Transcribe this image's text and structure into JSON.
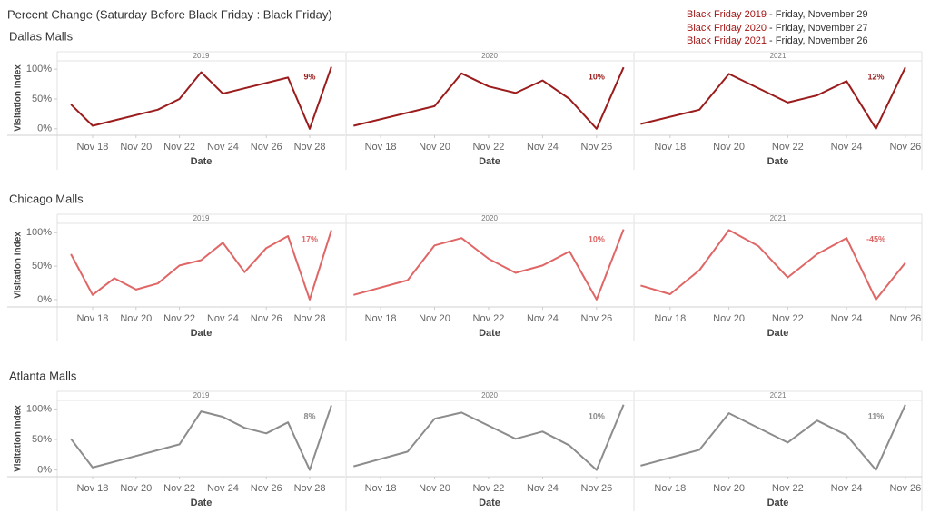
{
  "title": "Percent Change (Saturday Before Black Friday : Black Friday)",
  "notes": [
    {
      "label": "Black Friday 2019",
      "text": "- Friday, November 29"
    },
    {
      "label": "Black Friday 2020",
      "text": "- Friday, November 27"
    },
    {
      "label": "Black Friday 2021",
      "text": "- Friday, November 26"
    }
  ],
  "chart_data": [
    {
      "type": "line",
      "title": "Dallas Malls",
      "subtitle": "2019",
      "y_label": "Visitation Index",
      "x_label": "Date",
      "annotation": "9%",
      "color": "#9b1c1c",
      "x": [
        17,
        18,
        21,
        22,
        23,
        24,
        27,
        28,
        29
      ],
      "values": [
        41,
        5,
        32,
        50,
        95,
        59,
        86,
        0,
        104
      ],
      "xlim": [
        16.37,
        29.63
      ],
      "xticks": [
        {
          "value": 18,
          "label": "Nov 18"
        },
        {
          "value": 20,
          "label": "Nov 20"
        },
        {
          "value": 22,
          "label": "Nov 22"
        },
        {
          "value": 24,
          "label": "Nov 24"
        },
        {
          "value": 26,
          "label": "Nov 26"
        },
        {
          "value": 28,
          "label": "Nov 28"
        }
      ],
      "ylim": [
        -11,
        114
      ],
      "yticks": [
        {
          "value": 0,
          "label": "0%"
        },
        {
          "value": 50,
          "label": "50%"
        },
        {
          "value": 100,
          "label": "100%"
        }
      ]
    },
    {
      "type": "line",
      "subtitle": "2020",
      "x_label": "Date",
      "annotation": "10%",
      "color": "#9b1c1c",
      "x": [
        17,
        20,
        21,
        22,
        23,
        24,
        25,
        26,
        27
      ],
      "values": [
        5,
        38,
        93,
        71,
        60,
        81,
        50,
        0,
        103
      ],
      "xlim": [
        16.72,
        27.35
      ],
      "xticks": [
        {
          "value": 18,
          "label": "Nov 18"
        },
        {
          "value": 20,
          "label": "Nov 20"
        },
        {
          "value": 22,
          "label": "Nov 22"
        },
        {
          "value": 24,
          "label": "Nov 24"
        },
        {
          "value": 26,
          "label": "Nov 26"
        }
      ],
      "ylim": [
        -11,
        114
      ]
    },
    {
      "type": "line",
      "subtitle": "2021",
      "x_label": "Date",
      "annotation": "12%",
      "color": "#9b1c1c",
      "x": [
        17,
        19,
        20,
        22,
        23,
        24,
        25,
        26
      ],
      "values": [
        8,
        32,
        92,
        44,
        56,
        80,
        0,
        103
      ],
      "xlim": [
        16.77,
        26.56
      ],
      "xticks": [
        {
          "value": 18,
          "label": "Nov 18"
        },
        {
          "value": 20,
          "label": "Nov 20"
        },
        {
          "value": 22,
          "label": "Nov 22"
        },
        {
          "value": 24,
          "label": "Nov 24"
        },
        {
          "value": 26,
          "label": "Nov 26"
        }
      ],
      "ylim": [
        -11,
        114
      ]
    },
    {
      "type": "line",
      "title": "Chicago Malls",
      "subtitle": "2019",
      "y_label": "Visitation Index",
      "x_label": "Date",
      "annotation": "17%",
      "color": "#e06666",
      "x": [
        17,
        18,
        19,
        20,
        21,
        22,
        23,
        24,
        25,
        26,
        27,
        28,
        29
      ],
      "values": [
        68,
        7,
        32,
        15,
        24,
        51,
        59,
        85,
        41,
        77,
        95,
        0,
        104
      ],
      "xlim": [
        16.37,
        29.63
      ],
      "xticks": [
        {
          "value": 18,
          "label": "Nov 18"
        },
        {
          "value": 20,
          "label": "Nov 20"
        },
        {
          "value": 22,
          "label": "Nov 22"
        },
        {
          "value": 24,
          "label": "Nov 24"
        },
        {
          "value": 26,
          "label": "Nov 26"
        },
        {
          "value": 28,
          "label": "Nov 28"
        }
      ],
      "ylim": [
        -11,
        114
      ],
      "yticks": [
        {
          "value": 0,
          "label": "0%"
        },
        {
          "value": 50,
          "label": "50%"
        },
        {
          "value": 100,
          "label": "100%"
        }
      ]
    },
    {
      "type": "line",
      "subtitle": "2020",
      "x_label": "Date",
      "annotation": "10%",
      "color": "#e06666",
      "x": [
        17,
        19,
        20,
        21,
        22,
        23,
        24,
        25,
        26,
        27
      ],
      "values": [
        7,
        29,
        81,
        92,
        61,
        40,
        51,
        72,
        0,
        105
      ],
      "xlim": [
        16.72,
        27.35
      ],
      "xticks": [
        {
          "value": 18,
          "label": "Nov 18"
        },
        {
          "value": 20,
          "label": "Nov 20"
        },
        {
          "value": 22,
          "label": "Nov 22"
        },
        {
          "value": 24,
          "label": "Nov 24"
        },
        {
          "value": 26,
          "label": "Nov 26"
        }
      ],
      "ylim": [
        -11,
        114
      ]
    },
    {
      "type": "line",
      "subtitle": "2021",
      "x_label": "Date",
      "annotation": "-45%",
      "color": "#e06666",
      "x": [
        17,
        18,
        19,
        20,
        21,
        22,
        23,
        24,
        25,
        26
      ],
      "values": [
        21,
        8,
        44,
        104,
        80,
        33,
        68,
        92,
        0,
        55
      ],
      "xlim": [
        16.77,
        26.56
      ],
      "xticks": [
        {
          "value": 18,
          "label": "Nov 18"
        },
        {
          "value": 20,
          "label": "Nov 20"
        },
        {
          "value": 22,
          "label": "Nov 22"
        },
        {
          "value": 24,
          "label": "Nov 24"
        },
        {
          "value": 26,
          "label": "Nov 26"
        }
      ],
      "ylim": [
        -11,
        114
      ]
    },
    {
      "type": "line",
      "title": "Atlanta Malls",
      "subtitle": "2019",
      "y_label": "Visitation Index",
      "x_label": "Date",
      "annotation": "8%",
      "color": "#8c8c8c",
      "x": [
        17,
        18,
        22,
        23,
        24,
        25,
        26,
        27,
        28,
        29
      ],
      "values": [
        51,
        4,
        42,
        96,
        87,
        69,
        60,
        78,
        0,
        106
      ],
      "xlim": [
        16.37,
        29.63
      ],
      "xticks": [
        {
          "value": 18,
          "label": "Nov 18"
        },
        {
          "value": 20,
          "label": "Nov 20"
        },
        {
          "value": 22,
          "label": "Nov 22"
        },
        {
          "value": 24,
          "label": "Nov 24"
        },
        {
          "value": 26,
          "label": "Nov 26"
        },
        {
          "value": 28,
          "label": "Nov 28"
        }
      ],
      "ylim": [
        -11,
        114
      ],
      "yticks": [
        {
          "value": 0,
          "label": "0%"
        },
        {
          "value": 50,
          "label": "50%"
        },
        {
          "value": 100,
          "label": "100%"
        }
      ]
    },
    {
      "type": "line",
      "subtitle": "2020",
      "x_label": "Date",
      "annotation": "10%",
      "color": "#8c8c8c",
      "x": [
        17,
        19,
        20,
        21,
        23,
        24,
        25,
        26,
        27
      ],
      "values": [
        6,
        30,
        84,
        94,
        51,
        63,
        40,
        0,
        107
      ],
      "xlim": [
        16.72,
        27.35
      ],
      "xticks": [
        {
          "value": 18,
          "label": "Nov 18"
        },
        {
          "value": 20,
          "label": "Nov 20"
        },
        {
          "value": 22,
          "label": "Nov 22"
        },
        {
          "value": 24,
          "label": "Nov 24"
        },
        {
          "value": 26,
          "label": "Nov 26"
        }
      ],
      "ylim": [
        -11,
        114
      ]
    },
    {
      "type": "line",
      "subtitle": "2021",
      "x_label": "Date",
      "annotation": "11%",
      "color": "#8c8c8c",
      "x": [
        17,
        19,
        20,
        22,
        23,
        24,
        25,
        26
      ],
      "values": [
        7,
        33,
        93,
        45,
        81,
        57,
        0,
        107
      ],
      "xlim": [
        16.77,
        26.56
      ],
      "xticks": [
        {
          "value": 18,
          "label": "Nov 18"
        },
        {
          "value": 20,
          "label": "Nov 20"
        },
        {
          "value": 22,
          "label": "Nov 22"
        },
        {
          "value": 24,
          "label": "Nov 24"
        },
        {
          "value": 26,
          "label": "Nov 26"
        }
      ],
      "ylim": [
        -11,
        114
      ]
    }
  ]
}
